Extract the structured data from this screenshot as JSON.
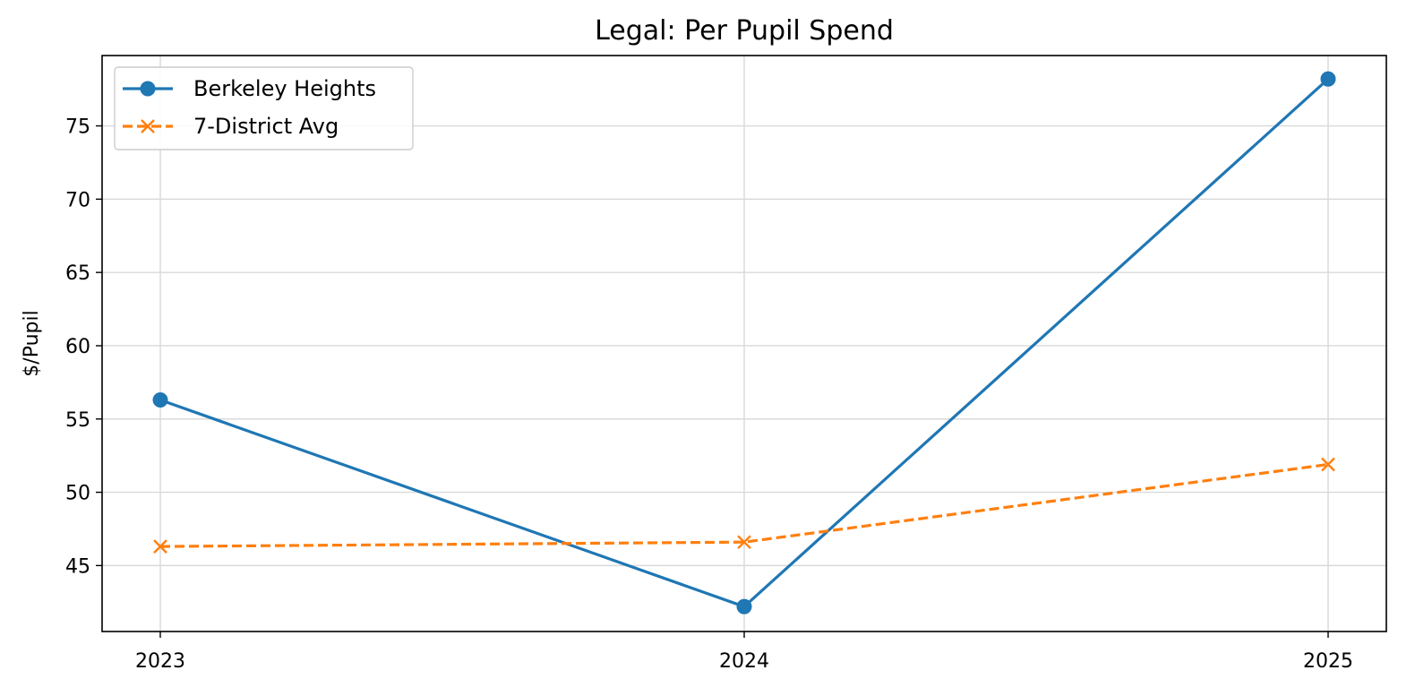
{
  "chart_data": {
    "type": "line",
    "title": "Legal: Per Pupil Spend",
    "xlabel": "",
    "ylabel": "$/Pupil",
    "categories": [
      "2023",
      "2024",
      "2025"
    ],
    "ylim": [
      40.5,
      79.8
    ],
    "yticks": [
      45,
      50,
      55,
      60,
      65,
      70,
      75
    ],
    "grid": true,
    "legend_position": "top-left",
    "series": [
      {
        "name": "Berkeley Heights",
        "values": [
          56.3,
          42.2,
          78.2
        ],
        "color": "#1f77b4",
        "marker": "circle",
        "line_style": "solid"
      },
      {
        "name": "7-District Avg",
        "values": [
          46.3,
          46.6,
          51.9
        ],
        "color": "#ff7f0e",
        "marker": "x",
        "line_style": "dashed"
      }
    ]
  }
}
